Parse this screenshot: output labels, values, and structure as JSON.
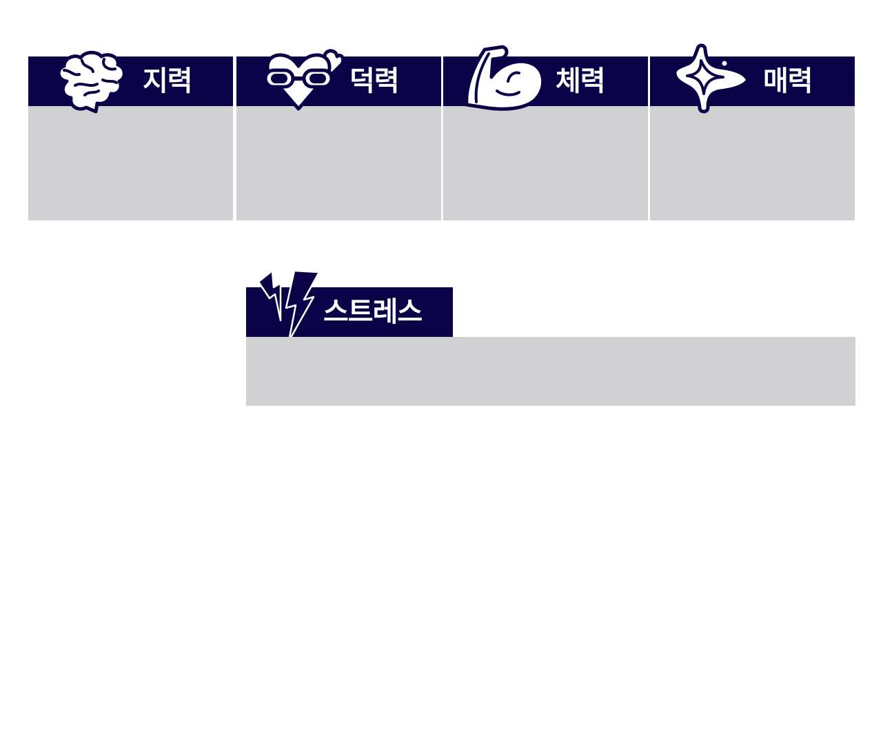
{
  "stats": [
    {
      "label": "지력",
      "icon": "brain-icon"
    },
    {
      "label": "덕력",
      "icon": "heart-glasses-icon"
    },
    {
      "label": "체력",
      "icon": "flexed-arm-icon"
    },
    {
      "label": "매력",
      "icon": "sparkle-icon"
    }
  ],
  "stress": {
    "label": "스트레스",
    "icon": "lightning-icon"
  },
  "colors": {
    "header": "#0a0348",
    "panel": "#d1d1d3",
    "text": "#ffffff"
  }
}
